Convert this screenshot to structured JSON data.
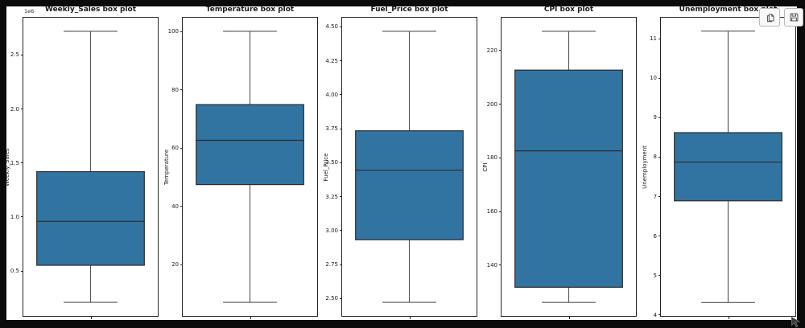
{
  "app": {
    "context_label": "notebook chart output"
  },
  "colors": {
    "page_background": "#0b0b0b",
    "figure_background": "#ffffff",
    "box_fill": "#3274a1",
    "box_edge": "#2b2b2b",
    "median_line": "#2b2b2b",
    "whisker": "#555555",
    "spine": "#262626",
    "text": "#1a1a1a",
    "button_background": "#f9f9f9",
    "button_border": "#b9b9b9",
    "icon_stroke": "#424242"
  },
  "toolbar": {
    "buttons": [
      {
        "name": "copy-output-button",
        "icon": "copy-icon"
      },
      {
        "name": "save-output-button",
        "icon": "save-icon"
      }
    ]
  },
  "chart_data": [
    {
      "type": "box",
      "title": "Weekly_Sales box plot",
      "ylabel": "Weekly_Sales",
      "y_offset_text": "1e6",
      "ytick_labels": [
        "0.5",
        "1.0",
        "1.5",
        "2.0",
        "2.5"
      ],
      "ytick_values": [
        500000,
        1000000,
        1500000,
        2000000,
        2500000
      ],
      "stats": {
        "whisker_low": 209986,
        "q1": 553350,
        "median": 960746,
        "q3": 1420159,
        "whisker_high": 2720000
      },
      "ylim": [
        84485,
        2845515
      ],
      "grid": false,
      "n_categories": 1
    },
    {
      "type": "box",
      "title": "Temperature box plot",
      "ylabel": "Temperature",
      "y_offset_text": "",
      "ytick_labels": [
        "20",
        "40",
        "60",
        "80",
        "100"
      ],
      "ytick_values": [
        20,
        40,
        60,
        80,
        100
      ],
      "stats": {
        "whisker_low": 7.0,
        "q1": 47.46,
        "median": 62.67,
        "q3": 74.94,
        "whisker_high": 100.14
      },
      "ylim": [
        2.34,
        104.8
      ],
      "grid": false,
      "n_categories": 1
    },
    {
      "type": "box",
      "title": "Fuel_Price box plot",
      "ylabel": "Fuel_Price",
      "y_offset_text": "",
      "ytick_labels": [
        "2.50",
        "2.75",
        "3.00",
        "3.25",
        "3.50",
        "3.75",
        "4.00",
        "4.25",
        "4.50"
      ],
      "ytick_values": [
        2.5,
        2.75,
        3.0,
        3.25,
        3.5,
        3.75,
        4.0,
        4.25,
        4.5
      ],
      "stats": {
        "whisker_low": 2.472,
        "q1": 2.933,
        "median": 3.445,
        "q3": 3.735,
        "whisker_high": 4.468
      },
      "ylim": [
        2.372,
        4.568
      ],
      "grid": false,
      "n_categories": 1
    },
    {
      "type": "box",
      "title": "CPI box plot",
      "ylabel": "CPI",
      "y_offset_text": "",
      "ytick_labels": [
        "140",
        "160",
        "180",
        "200",
        "220"
      ],
      "ytick_values": [
        140,
        160,
        180,
        200,
        220
      ],
      "stats": {
        "whisker_low": 126.064,
        "q1": 131.735,
        "median": 182.616,
        "q3": 212.743,
        "whisker_high": 227.232
      },
      "ylim": [
        121.01,
        232.29
      ],
      "grid": false,
      "n_categories": 1
    },
    {
      "type": "box",
      "title": "Unemployment box plot",
      "ylabel": "Unemployment",
      "y_offset_text": "",
      "ytick_labels": [
        "4",
        "5",
        "6",
        "7",
        "8",
        "9",
        "10",
        "11"
      ],
      "ytick_values": [
        4,
        5,
        6,
        7,
        8,
        9,
        10,
        11
      ],
      "stats": {
        "whisker_low": 4.31,
        "q1": 6.891,
        "median": 7.874,
        "q3": 8.622,
        "whisker_high": 11.2
      },
      "ylim": [
        3.97,
        11.54
      ],
      "grid": false,
      "n_categories": 1
    }
  ]
}
